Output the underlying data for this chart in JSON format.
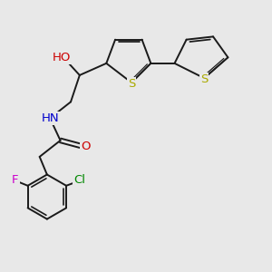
{
  "bg_color": "#e8e8e8",
  "bond_color": "#1a1a1a",
  "atom_colors": {
    "O": "#cc0000",
    "N": "#0000cc",
    "S": "#aaaa00",
    "F": "#cc00cc",
    "Cl": "#008800",
    "C": "#1a1a1a"
  },
  "font_size": 9.5,
  "bond_width": 1.4,
  "fig_bg": "#e8e8e8",
  "xlim": [
    0.5,
    9.5
  ],
  "ylim": [
    1.0,
    9.5
  ]
}
